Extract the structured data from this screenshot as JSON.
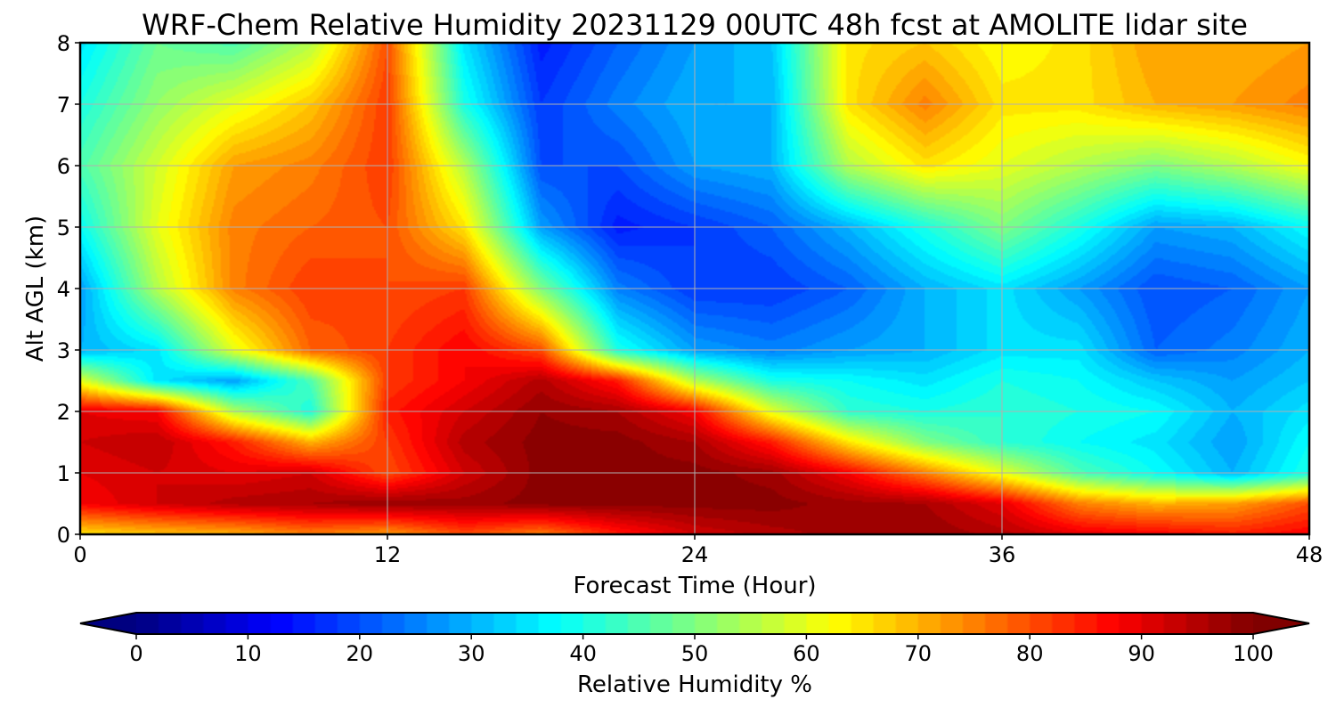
{
  "chart_data": {
    "type": "heatmap",
    "title": "WRF-Chem Relative Humidity 20231129 00UTC 48h fcst at AMOLITE lidar site",
    "xlabel": "Forecast Time (Hour)",
    "ylabel": "Alt AGL (km)",
    "xlim": [
      0,
      48
    ],
    "ylim": [
      0,
      8
    ],
    "xticks": [
      0,
      12,
      24,
      36,
      48
    ],
    "yticks": [
      0,
      1,
      2,
      3,
      4,
      5,
      6,
      7,
      8
    ],
    "grid": true,
    "x": [
      0,
      3,
      6,
      9,
      12,
      15,
      18,
      21,
      24,
      27,
      30,
      33,
      36,
      39,
      42,
      45,
      48
    ],
    "y": [
      0,
      0.5,
      1,
      1.5,
      2,
      2.5,
      3,
      4,
      5,
      6,
      7,
      8
    ],
    "z": [
      [
        65,
        68,
        70,
        75,
        72,
        80,
        75,
        85,
        92,
        95,
        97,
        98,
        95,
        90,
        88,
        85,
        88
      ],
      [
        88,
        92,
        95,
        96,
        98,
        97,
        99,
        99,
        99,
        99,
        97,
        96,
        90,
        75,
        70,
        72,
        80
      ],
      [
        90,
        92,
        90,
        92,
        80,
        92,
        99,
        99,
        99,
        97,
        88,
        75,
        60,
        45,
        38,
        30,
        40
      ],
      [
        92,
        94,
        85,
        70,
        82,
        95,
        99,
        99,
        96,
        85,
        65,
        50,
        42,
        38,
        35,
        28,
        38
      ],
      [
        90,
        88,
        55,
        40,
        85,
        92,
        98,
        96,
        88,
        60,
        42,
        40,
        42,
        40,
        38,
        30,
        35
      ],
      [
        60,
        35,
        28,
        45,
        82,
        88,
        95,
        85,
        55,
        40,
        38,
        35,
        40,
        38,
        32,
        28,
        32
      ],
      [
        30,
        35,
        60,
        78,
        82,
        88,
        80,
        40,
        28,
        25,
        28,
        30,
        35,
        35,
        22,
        25,
        30
      ],
      [
        28,
        55,
        75,
        82,
        80,
        82,
        50,
        25,
        18,
        18,
        22,
        30,
        35,
        28,
        20,
        22,
        28
      ],
      [
        38,
        60,
        75,
        78,
        80,
        65,
        28,
        15,
        18,
        22,
        30,
        40,
        50,
        40,
        28,
        30,
        38
      ],
      [
        45,
        58,
        72,
        75,
        82,
        55,
        20,
        20,
        28,
        30,
        55,
        65,
        60,
        55,
        50,
        55,
        62
      ],
      [
        40,
        52,
        60,
        68,
        82,
        40,
        18,
        25,
        30,
        30,
        65,
        75,
        65,
        65,
        70,
        72,
        75
      ],
      [
        35,
        48,
        45,
        55,
        80,
        35,
        15,
        22,
        28,
        32,
        65,
        68,
        62,
        65,
        72,
        70,
        72
      ]
    ],
    "colorbar": {
      "label": "Relative Humidity %",
      "min": 0,
      "max": 100,
      "ticks": [
        "0",
        "10",
        "20",
        "30",
        "40",
        "50",
        "60",
        "70",
        "80",
        "90",
        "100"
      ],
      "colormap": "jet",
      "extend": "both"
    }
  }
}
